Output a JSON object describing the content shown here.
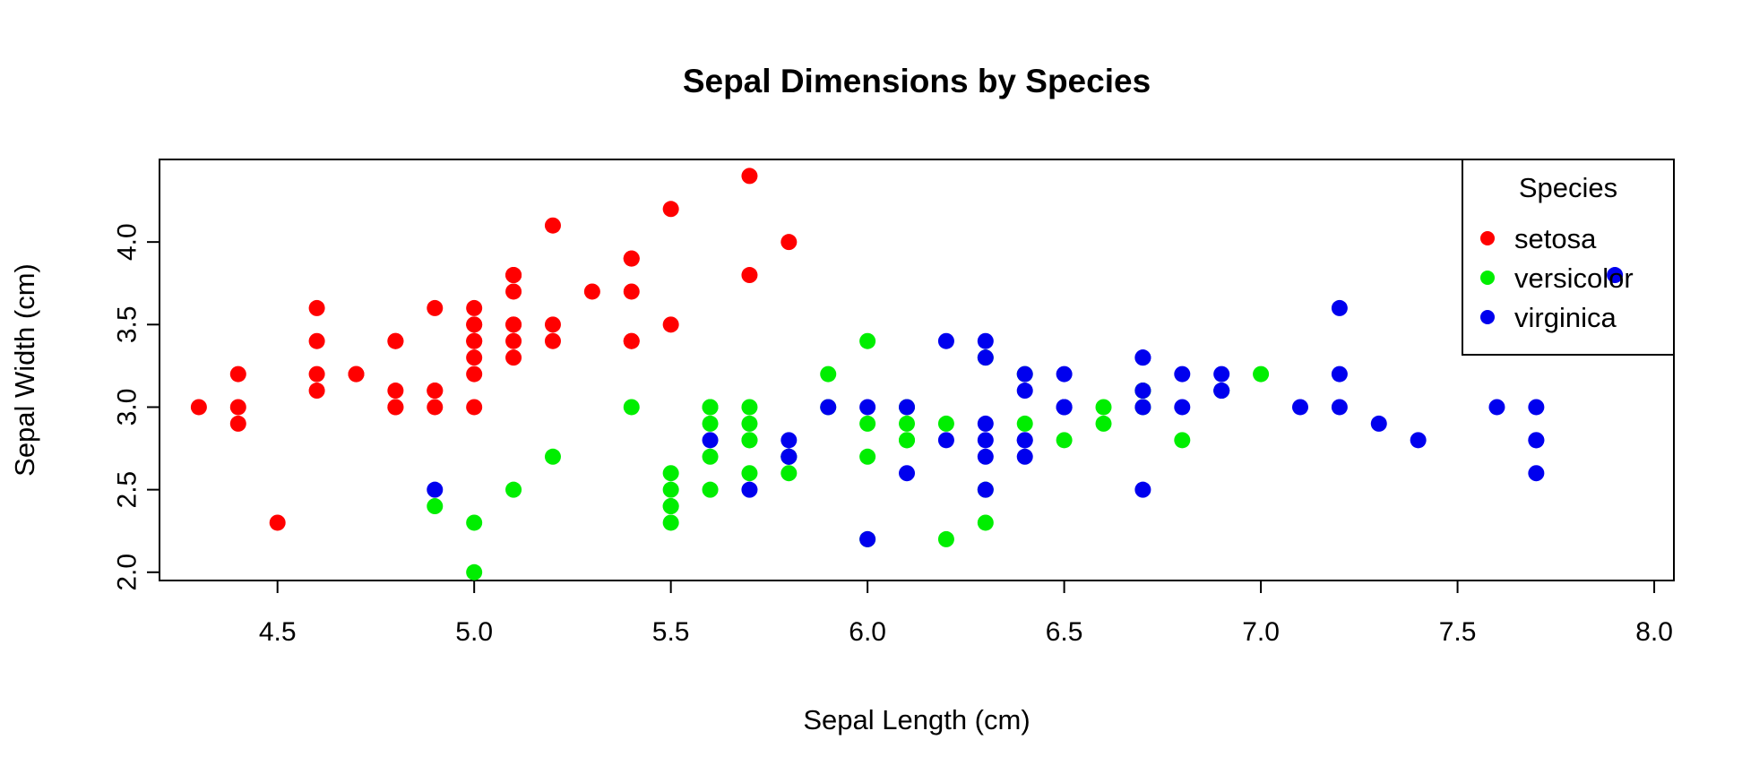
{
  "chart_data": {
    "type": "scatter",
    "title": "Sepal Dimensions by Species",
    "xlabel": "Sepal Length (cm)",
    "ylabel": "Sepal Width (cm)",
    "xlim": [
      4.2,
      8.05
    ],
    "ylim": [
      1.95,
      4.5
    ],
    "x_ticks": [
      "4.5",
      "5.0",
      "5.5",
      "6.0",
      "6.5",
      "7.0",
      "7.5",
      "8.0"
    ],
    "y_ticks": [
      "2.0",
      "2.5",
      "3.0",
      "3.5",
      "4.0"
    ],
    "grid": false,
    "legend": {
      "title": "Species",
      "position": "top-right"
    },
    "series": [
      {
        "name": "setosa",
        "color": "#ff0000",
        "points": [
          [
            5.1,
            3.5
          ],
          [
            4.9,
            3.0
          ],
          [
            4.7,
            3.2
          ],
          [
            4.6,
            3.1
          ],
          [
            5.0,
            3.6
          ],
          [
            5.4,
            3.9
          ],
          [
            4.6,
            3.4
          ],
          [
            5.0,
            3.4
          ],
          [
            4.4,
            2.9
          ],
          [
            4.9,
            3.1
          ],
          [
            5.4,
            3.7
          ],
          [
            4.8,
            3.4
          ],
          [
            4.8,
            3.0
          ],
          [
            4.3,
            3.0
          ],
          [
            5.8,
            4.0
          ],
          [
            5.7,
            4.4
          ],
          [
            5.4,
            3.9
          ],
          [
            5.1,
            3.5
          ],
          [
            5.7,
            3.8
          ],
          [
            5.1,
            3.8
          ],
          [
            5.4,
            3.4
          ],
          [
            5.1,
            3.7
          ],
          [
            4.6,
            3.6
          ],
          [
            5.1,
            3.3
          ],
          [
            4.8,
            3.4
          ],
          [
            5.0,
            3.0
          ],
          [
            5.0,
            3.4
          ],
          [
            5.2,
            3.5
          ],
          [
            5.2,
            3.4
          ],
          [
            4.7,
            3.2
          ],
          [
            4.8,
            3.1
          ],
          [
            5.4,
            3.4
          ],
          [
            5.2,
            4.1
          ],
          [
            5.5,
            4.2
          ],
          [
            4.9,
            3.1
          ],
          [
            5.0,
            3.2
          ],
          [
            5.5,
            3.5
          ],
          [
            4.9,
            3.6
          ],
          [
            4.4,
            3.0
          ],
          [
            5.1,
            3.4
          ],
          [
            5.0,
            3.5
          ],
          [
            4.5,
            2.3
          ],
          [
            4.4,
            3.2
          ],
          [
            5.0,
            3.5
          ],
          [
            5.1,
            3.8
          ],
          [
            4.8,
            3.0
          ],
          [
            5.1,
            3.8
          ],
          [
            4.6,
            3.2
          ],
          [
            5.3,
            3.7
          ],
          [
            5.0,
            3.3
          ]
        ]
      },
      {
        "name": "versicolor",
        "color": "#00ee00",
        "points": [
          [
            7.0,
            3.2
          ],
          [
            6.4,
            3.2
          ],
          [
            6.9,
            3.1
          ],
          [
            5.5,
            2.3
          ],
          [
            6.5,
            2.8
          ],
          [
            5.7,
            2.8
          ],
          [
            6.3,
            3.3
          ],
          [
            4.9,
            2.4
          ],
          [
            6.6,
            2.9
          ],
          [
            5.2,
            2.7
          ],
          [
            5.0,
            2.0
          ],
          [
            5.9,
            3.0
          ],
          [
            6.0,
            2.2
          ],
          [
            6.1,
            2.9
          ],
          [
            5.6,
            2.9
          ],
          [
            6.7,
            3.1
          ],
          [
            5.6,
            3.0
          ],
          [
            5.8,
            2.7
          ],
          [
            6.2,
            2.2
          ],
          [
            5.6,
            2.5
          ],
          [
            5.9,
            3.2
          ],
          [
            6.1,
            2.8
          ],
          [
            6.3,
            2.5
          ],
          [
            6.1,
            2.8
          ],
          [
            6.4,
            2.9
          ],
          [
            6.6,
            3.0
          ],
          [
            6.8,
            2.8
          ],
          [
            6.7,
            3.0
          ],
          [
            6.0,
            2.9
          ],
          [
            5.7,
            2.6
          ],
          [
            5.5,
            2.4
          ],
          [
            5.5,
            2.4
          ],
          [
            5.8,
            2.7
          ],
          [
            6.0,
            2.7
          ],
          [
            5.4,
            3.0
          ],
          [
            6.0,
            3.4
          ],
          [
            6.7,
            3.1
          ],
          [
            6.3,
            2.3
          ],
          [
            5.6,
            3.0
          ],
          [
            5.5,
            2.5
          ],
          [
            5.5,
            2.6
          ],
          [
            6.1,
            3.0
          ],
          [
            5.8,
            2.6
          ],
          [
            5.0,
            2.3
          ],
          [
            5.6,
            2.7
          ],
          [
            5.7,
            3.0
          ],
          [
            5.7,
            2.9
          ],
          [
            6.2,
            2.9
          ],
          [
            5.1,
            2.5
          ],
          [
            5.7,
            2.8
          ]
        ]
      },
      {
        "name": "virginica",
        "color": "#0000ee",
        "points": [
          [
            6.3,
            3.3
          ],
          [
            5.8,
            2.7
          ],
          [
            7.1,
            3.0
          ],
          [
            6.3,
            2.9
          ],
          [
            6.5,
            3.0
          ],
          [
            7.6,
            3.0
          ],
          [
            4.9,
            2.5
          ],
          [
            7.3,
            2.9
          ],
          [
            6.7,
            2.5
          ],
          [
            7.2,
            3.6
          ],
          [
            6.5,
            3.2
          ],
          [
            6.4,
            2.7
          ],
          [
            6.8,
            3.0
          ],
          [
            5.7,
            2.5
          ],
          [
            5.8,
            2.8
          ],
          [
            6.4,
            3.2
          ],
          [
            6.5,
            3.0
          ],
          [
            7.7,
            2.8
          ],
          [
            7.7,
            2.6
          ],
          [
            6.0,
            2.2
          ],
          [
            6.9,
            3.2
          ],
          [
            5.6,
            2.8
          ],
          [
            7.7,
            2.8
          ],
          [
            6.3,
            2.7
          ],
          [
            6.7,
            3.3
          ],
          [
            7.2,
            3.2
          ],
          [
            6.2,
            2.8
          ],
          [
            6.1,
            3.0
          ],
          [
            6.4,
            2.8
          ],
          [
            7.2,
            3.0
          ],
          [
            7.4,
            2.8
          ],
          [
            7.9,
            3.8
          ],
          [
            6.4,
            2.8
          ],
          [
            6.3,
            2.8
          ],
          [
            6.1,
            2.6
          ],
          [
            7.7,
            3.0
          ],
          [
            6.3,
            3.4
          ],
          [
            6.4,
            3.1
          ],
          [
            6.0,
            3.0
          ],
          [
            6.9,
            3.1
          ],
          [
            6.7,
            3.1
          ],
          [
            6.9,
            3.1
          ],
          [
            5.8,
            2.7
          ],
          [
            6.8,
            3.2
          ],
          [
            6.7,
            3.3
          ],
          [
            6.7,
            3.0
          ],
          [
            6.3,
            2.5
          ],
          [
            6.5,
            3.0
          ],
          [
            6.2,
            3.4
          ],
          [
            5.9,
            3.0
          ]
        ]
      }
    ]
  }
}
